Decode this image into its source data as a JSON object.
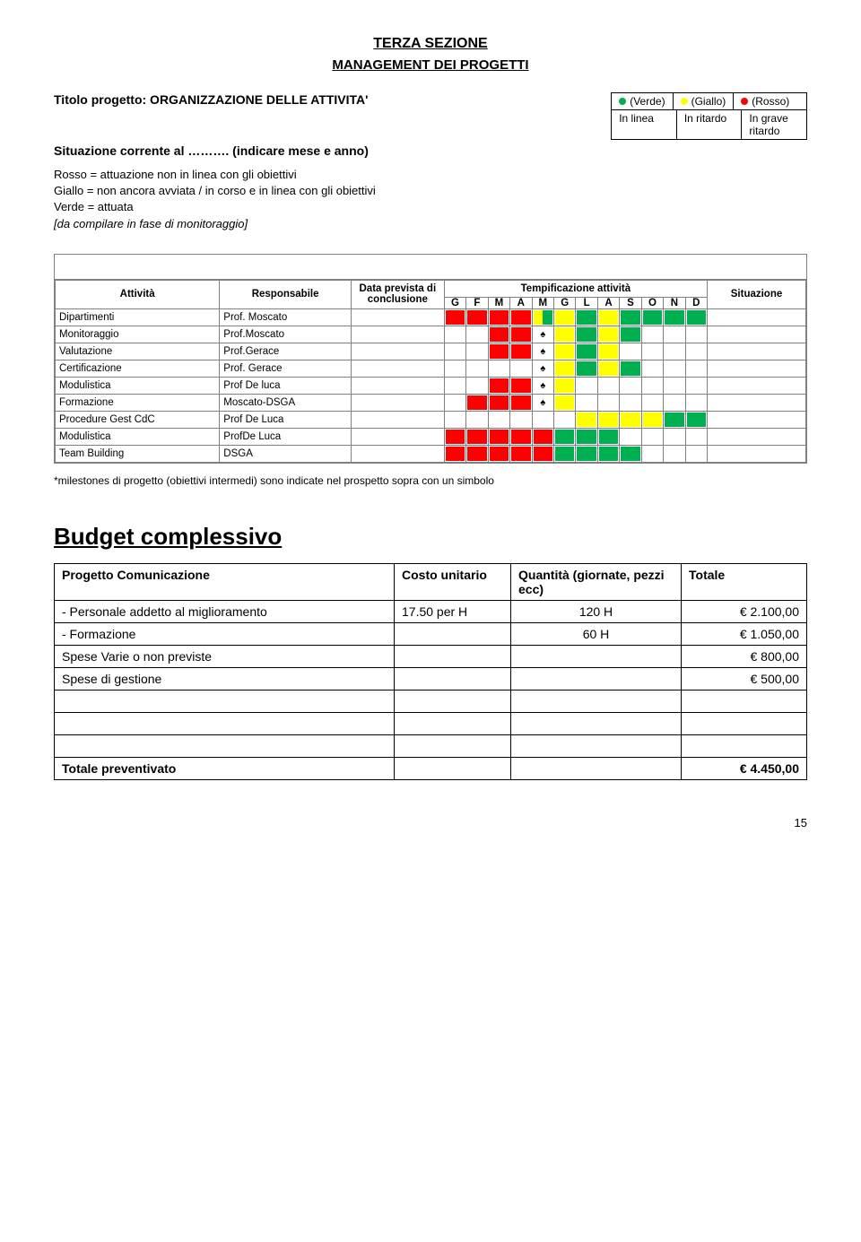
{
  "colors": {
    "verde": "#00b050",
    "giallo": "#ffff00",
    "rosso": "#ff0000",
    "border": "#808080"
  },
  "header": {
    "section": "TERZA SEZIONE",
    "subsection": "MANAGEMENT DEI PROGETTI",
    "project_label": "Titolo progetto: ORGANIZZAZIONE DELLE ATTIVITA'",
    "situazione_label": "Situazione corrente al ………. (indicare mese e anno)",
    "status_labels": {
      "verde": "(Verde)",
      "giallo": "(Giallo)",
      "rosso": "(Rosso)"
    },
    "status_row2": {
      "a": "In linea",
      "b": "In ritardo",
      "c": "In grave ritardo"
    }
  },
  "legend": {
    "l1": "Rosso = attuazione non in linea con gli obiettivi",
    "l2": "Giallo = non ancora avviata / in corso e in linea con gli obiettivi",
    "l3": "Verde = attuata",
    "l4": "[da compilare in fase di monitoraggio]"
  },
  "gantt": {
    "headers": {
      "attivita": "Attività",
      "responsabile": "Responsabile",
      "data": "Data prevista di conclusione",
      "tempificazione": "Tempificazione attività",
      "situazione": "Situazione"
    },
    "months": [
      "G",
      "F",
      "M",
      "A",
      "M",
      "G",
      "L",
      "A",
      "S",
      "O",
      "N",
      "D"
    ],
    "rows": [
      {
        "attivita": "Dipartimenti",
        "resp": "Prof. Moscato",
        "cells": [
          {
            "c": "rosso"
          },
          {
            "c": "rosso"
          },
          {
            "c": "rosso"
          },
          {
            "c": "rosso"
          },
          {
            "c": "giallo",
            "half": "left",
            "c2": "verde"
          },
          {
            "c": "giallo"
          },
          {
            "c": "verde"
          },
          {
            "c": "giallo"
          },
          {
            "c": "verde"
          },
          {
            "c": "verde"
          },
          {
            "c": "verde"
          },
          {
            "c": "verde"
          }
        ]
      },
      {
        "attivita": "Monitoraggio",
        "resp": "Prof.Moscato",
        "cells": [
          {},
          {},
          {
            "c": "rosso"
          },
          {
            "c": "rosso"
          },
          {
            "spade": true
          },
          {
            "c": "giallo"
          },
          {
            "c": "verde"
          },
          {
            "c": "giallo"
          },
          {
            "c": "verde"
          },
          {},
          {},
          {}
        ]
      },
      {
        "attivita": "Valutazione",
        "resp": "Prof.Gerace",
        "cells": [
          {},
          {},
          {
            "c": "rosso"
          },
          {
            "c": "rosso"
          },
          {
            "spade": true
          },
          {
            "c": "giallo"
          },
          {
            "c": "verde"
          },
          {
            "c": "giallo"
          },
          {},
          {},
          {},
          {}
        ]
      },
      {
        "attivita": "Certificazione",
        "resp": "Prof. Gerace",
        "cells": [
          {},
          {},
          {},
          {},
          {
            "spade": true
          },
          {
            "c": "giallo"
          },
          {
            "c": "verde"
          },
          {
            "c": "giallo"
          },
          {
            "c": "verde"
          },
          {},
          {},
          {}
        ]
      },
      {
        "attivita": "Modulistica",
        "resp": "Prof De luca",
        "cells": [
          {},
          {},
          {
            "c": "rosso"
          },
          {
            "c": "rosso"
          },
          {
            "spade": true
          },
          {
            "c": "giallo"
          },
          {},
          {},
          {},
          {},
          {},
          {}
        ]
      },
      {
        "attivita": "Formazione",
        "resp": "Moscato-DSGA",
        "cells": [
          {},
          {
            "c": "rosso"
          },
          {
            "c": "rosso"
          },
          {
            "c": "rosso"
          },
          {
            "spade": true
          },
          {
            "c": "giallo"
          },
          {},
          {},
          {},
          {},
          {},
          {}
        ]
      },
      {
        "attivita": "Procedure Gest CdC",
        "resp": "Prof De Luca",
        "cells": [
          {},
          {},
          {},
          {},
          {},
          {},
          {
            "c": "giallo"
          },
          {
            "c": "giallo"
          },
          {
            "c": "giallo"
          },
          {
            "c": "giallo"
          },
          {
            "c": "verde"
          },
          {
            "c": "verde"
          }
        ]
      },
      {
        "attivita": "Modulistica",
        "resp": "ProfDe Luca",
        "cells": [
          {
            "c": "rosso"
          },
          {
            "c": "rosso"
          },
          {
            "c": "rosso"
          },
          {
            "c": "rosso"
          },
          {
            "c": "rosso"
          },
          {
            "c": "verde"
          },
          {
            "c": "verde"
          },
          {
            "c": "verde"
          },
          {},
          {},
          {},
          {}
        ]
      },
      {
        "attivita": "Team Building",
        "resp": "DSGA",
        "cells": [
          {
            "c": "rosso"
          },
          {
            "c": "rosso"
          },
          {
            "c": "rosso"
          },
          {
            "c": "rosso"
          },
          {
            "c": "rosso"
          },
          {
            "c": "verde"
          },
          {
            "c": "verde"
          },
          {
            "c": "verde"
          },
          {
            "c": "verde"
          },
          {},
          {},
          {}
        ]
      }
    ]
  },
  "footnote": "*milestones di progetto (obiettivi intermedi) sono indicate nel prospetto sopra con un simbolo",
  "budget": {
    "title": "Budget complessivo",
    "headers": {
      "progetto": "Progetto Comunicazione",
      "costo": "Costo unitario",
      "quantita": "Quantità (giornate, pezzi ecc)",
      "totale": "Totale"
    },
    "rows": [
      {
        "label": "- Personale addetto al miglioramento",
        "costo": "17.50 per H",
        "qty": "120  H",
        "tot": "€  2.100,00"
      },
      {
        "label": "- Formazione",
        "costo": "",
        "qty": "60 H",
        "tot": "€  1.050,00"
      },
      {
        "label": "Spese Varie o non previste",
        "costo": "",
        "qty": "",
        "tot": "€     800,00"
      },
      {
        "label": "Spese di gestione",
        "costo": "",
        "qty": "",
        "tot": "€     500,00"
      },
      {
        "label": "",
        "costo": "",
        "qty": "",
        "tot": ""
      },
      {
        "label": "",
        "costo": "",
        "qty": "",
        "tot": ""
      },
      {
        "label": "",
        "costo": "",
        "qty": "",
        "tot": ""
      }
    ],
    "total_row": {
      "label": "Totale preventivato",
      "tot": "€  4.450,00"
    }
  },
  "page_number": "15"
}
